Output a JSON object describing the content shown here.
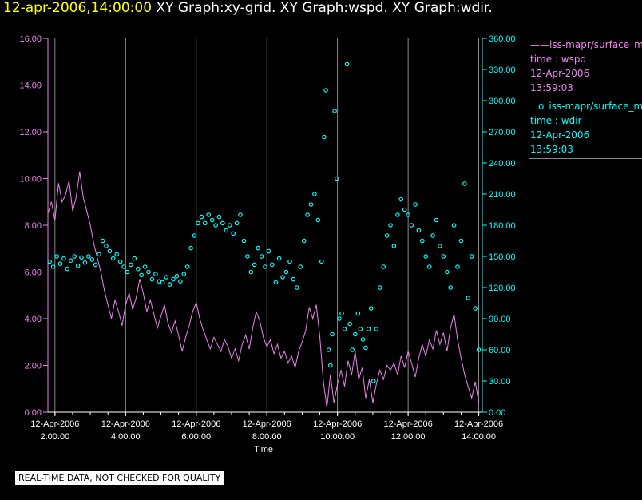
{
  "header": {
    "timestamp": "12-apr-2006,14:00:00",
    "graphs": "XY Graph:xy-grid.  XY Graph:wspd.  XY Graph:wdir."
  },
  "legend": {
    "wspd": {
      "marker": "——",
      "name": "iss-mapr/surface_m",
      "var": "time : wspd",
      "date": "12-Apr-2006",
      "time": "13:59:03"
    },
    "wdir": {
      "marker": "o",
      "name": "iss-mapr/surface_m",
      "var": "time : wdir",
      "date": "12-Apr-2006",
      "time": "13:59:03"
    }
  },
  "disclaimer": "REAL-TIME DATA, NOT CHECKED FOR QUALITY",
  "colors": {
    "wspd": "#ee82ee",
    "wdir": "#00ffff",
    "grid": "#aaaaaa",
    "axis": "#ffffff"
  },
  "chart_data": {
    "type": "line",
    "xlabel": "Time",
    "x_range_hours": [
      1.8,
      14.1
    ],
    "x_ticks": [
      {
        "hour": 2,
        "date": "12-Apr-2006",
        "time": "2:00:00"
      },
      {
        "hour": 4,
        "date": "12-Apr-2006",
        "time": "4:00:00"
      },
      {
        "hour": 6,
        "date": "12-Apr-2006",
        "time": "6:00:00"
      },
      {
        "hour": 8,
        "date": "12-Apr-2006",
        "time": "8:00:00"
      },
      {
        "hour": 10,
        "date": "12-Apr-2006",
        "time": "10:00:00"
      },
      {
        "hour": 12,
        "date": "12-Apr-2006",
        "time": "12:00:00"
      },
      {
        "hour": 14,
        "date": "12-Apr-2006",
        "time": "14:00:00"
      }
    ],
    "left_axis": {
      "ylim": [
        0,
        16
      ],
      "ticks": [
        "0.00",
        "2.00",
        "4.00",
        "6.00",
        "8.00",
        "10.00",
        "12.00",
        "14.00",
        "16.00"
      ]
    },
    "right_axis": {
      "ylim": [
        0,
        360
      ],
      "ticks": [
        "0.00",
        "30.00",
        "60.00",
        "90.00",
        "120.00",
        "150.00",
        "180.00",
        "210.00",
        "240.00",
        "270.00",
        "300.00",
        "330.00",
        "360.00"
      ]
    },
    "series": [
      {
        "name": "wspd",
        "axis": "left",
        "style": "line",
        "points": [
          [
            1.8,
            8.5
          ],
          [
            1.9,
            9.0
          ],
          [
            2.0,
            8.2
          ],
          [
            2.1,
            9.8
          ],
          [
            2.2,
            9.0
          ],
          [
            2.3,
            9.3
          ],
          [
            2.4,
            9.9
          ],
          [
            2.5,
            8.6
          ],
          [
            2.6,
            9.2
          ],
          [
            2.7,
            10.3
          ],
          [
            2.8,
            9.2
          ],
          [
            2.9,
            8.6
          ],
          [
            3.0,
            8.0
          ],
          [
            3.1,
            7.2
          ],
          [
            3.2,
            6.6
          ],
          [
            3.3,
            6.0
          ],
          [
            3.4,
            5.2
          ],
          [
            3.5,
            4.6
          ],
          [
            3.6,
            4.0
          ],
          [
            3.7,
            4.8
          ],
          [
            3.8,
            4.3
          ],
          [
            3.9,
            3.7
          ],
          [
            4.0,
            4.6
          ],
          [
            4.1,
            5.1
          ],
          [
            4.2,
            4.4
          ],
          [
            4.3,
            4.9
          ],
          [
            4.4,
            5.7
          ],
          [
            4.5,
            5.1
          ],
          [
            4.6,
            4.3
          ],
          [
            4.7,
            4.8
          ],
          [
            4.8,
            4.2
          ],
          [
            4.9,
            3.6
          ],
          [
            5.0,
            4.1
          ],
          [
            5.1,
            4.6
          ],
          [
            5.2,
            3.8
          ],
          [
            5.3,
            3.4
          ],
          [
            5.4,
            3.9
          ],
          [
            5.5,
            3.3
          ],
          [
            5.6,
            2.6
          ],
          [
            5.7,
            3.2
          ],
          [
            5.8,
            3.7
          ],
          [
            5.9,
            4.3
          ],
          [
            6.0,
            4.7
          ],
          [
            6.1,
            4.0
          ],
          [
            6.2,
            3.5
          ],
          [
            6.3,
            3.1
          ],
          [
            6.4,
            2.7
          ],
          [
            6.5,
            3.2
          ],
          [
            6.6,
            2.9
          ],
          [
            6.7,
            2.6
          ],
          [
            6.8,
            3.1
          ],
          [
            6.9,
            2.8
          ],
          [
            7.0,
            2.3
          ],
          [
            7.1,
            2.7
          ],
          [
            7.2,
            2.2
          ],
          [
            7.3,
            2.9
          ],
          [
            7.4,
            3.3
          ],
          [
            7.5,
            2.7
          ],
          [
            7.6,
            3.6
          ],
          [
            7.7,
            4.3
          ],
          [
            7.8,
            3.9
          ],
          [
            7.9,
            3.2
          ],
          [
            8.0,
            2.8
          ],
          [
            8.1,
            3.1
          ],
          [
            8.2,
            2.5
          ],
          [
            8.3,
            2.9
          ],
          [
            8.4,
            2.3
          ],
          [
            8.5,
            2.6
          ],
          [
            8.6,
            2.1
          ],
          [
            8.7,
            2.4
          ],
          [
            8.8,
            1.9
          ],
          [
            8.9,
            2.6
          ],
          [
            9.0,
            3.0
          ],
          [
            9.1,
            3.5
          ],
          [
            9.2,
            4.5
          ],
          [
            9.3,
            4.0
          ],
          [
            9.4,
            4.6
          ],
          [
            9.5,
            3.2
          ],
          [
            9.6,
            1.3
          ],
          [
            9.7,
            0.2
          ],
          [
            9.8,
            1.6
          ],
          [
            9.9,
            0.4
          ],
          [
            10.0,
            1.2
          ],
          [
            10.1,
            1.8
          ],
          [
            10.2,
            1.1
          ],
          [
            10.3,
            2.2
          ],
          [
            10.4,
            1.6
          ],
          [
            10.5,
            2.6
          ],
          [
            10.6,
            1.4
          ],
          [
            10.7,
            1.9
          ],
          [
            10.8,
            0.6
          ],
          [
            10.9,
            1.4
          ],
          [
            11.0,
            0.4
          ],
          [
            11.1,
            1.2
          ],
          [
            11.2,
            1.8
          ],
          [
            11.3,
            1.4
          ],
          [
            11.4,
            2.0
          ],
          [
            11.5,
            1.8
          ],
          [
            11.6,
            2.1
          ],
          [
            11.7,
            1.6
          ],
          [
            11.8,
            2.4
          ],
          [
            11.9,
            1.9
          ],
          [
            12.0,
            2.6
          ],
          [
            12.1,
            2.1
          ],
          [
            12.2,
            1.5
          ],
          [
            12.3,
            2.3
          ],
          [
            12.4,
            2.9
          ],
          [
            12.5,
            2.4
          ],
          [
            12.6,
            3.1
          ],
          [
            12.7,
            2.7
          ],
          [
            12.8,
            3.5
          ],
          [
            12.9,
            2.9
          ],
          [
            13.0,
            3.4
          ],
          [
            13.1,
            2.6
          ],
          [
            13.2,
            3.6
          ],
          [
            13.3,
            4.2
          ],
          [
            13.4,
            3.1
          ],
          [
            13.5,
            2.3
          ],
          [
            13.6,
            1.6
          ],
          [
            13.7,
            1.1
          ],
          [
            13.8,
            0.6
          ],
          [
            13.9,
            1.3
          ],
          [
            14.0,
            0.4
          ]
        ]
      },
      {
        "name": "wdir",
        "axis": "right",
        "style": "circles",
        "points": [
          [
            1.85,
            145
          ],
          [
            1.95,
            140
          ],
          [
            2.05,
            150
          ],
          [
            2.15,
            143
          ],
          [
            2.25,
            148
          ],
          [
            2.35,
            138
          ],
          [
            2.45,
            146
          ],
          [
            2.55,
            150
          ],
          [
            2.65,
            141
          ],
          [
            2.75,
            149
          ],
          [
            2.85,
            144
          ],
          [
            2.95,
            150
          ],
          [
            3.05,
            147
          ],
          [
            3.15,
            142
          ],
          [
            3.25,
            152
          ],
          [
            3.35,
            165
          ],
          [
            3.45,
            160
          ],
          [
            3.55,
            155
          ],
          [
            3.65,
            148
          ],
          [
            3.75,
            152
          ],
          [
            3.85,
            145
          ],
          [
            3.95,
            140
          ],
          [
            4.05,
            135
          ],
          [
            4.15,
            142
          ],
          [
            4.25,
            148
          ],
          [
            4.35,
            138
          ],
          [
            4.45,
            132
          ],
          [
            4.55,
            140
          ],
          [
            4.65,
            135
          ],
          [
            4.75,
            128
          ],
          [
            4.85,
            133
          ],
          [
            4.95,
            126
          ],
          [
            5.05,
            125
          ],
          [
            5.15,
            130
          ],
          [
            5.25,
            123
          ],
          [
            5.35,
            128
          ],
          [
            5.45,
            131
          ],
          [
            5.55,
            126
          ],
          [
            5.65,
            133
          ],
          [
            5.75,
            140
          ],
          [
            5.85,
            158
          ],
          [
            5.95,
            170
          ],
          [
            6.05,
            182
          ],
          [
            6.15,
            188
          ],
          [
            6.25,
            182
          ],
          [
            6.35,
            190
          ],
          [
            6.45,
            185
          ],
          [
            6.55,
            180
          ],
          [
            6.65,
            188
          ],
          [
            6.75,
            182
          ],
          [
            6.85,
            175
          ],
          [
            6.95,
            180
          ],
          [
            7.05,
            172
          ],
          [
            7.15,
            182
          ],
          [
            7.25,
            190
          ],
          [
            7.35,
            165
          ],
          [
            7.45,
            150
          ],
          [
            7.55,
            135
          ],
          [
            7.65,
            142
          ],
          [
            7.75,
            158
          ],
          [
            7.85,
            150
          ],
          [
            7.95,
            140
          ],
          [
            8.05,
            155
          ],
          [
            8.15,
            142
          ],
          [
            8.25,
            125
          ],
          [
            8.35,
            148
          ],
          [
            8.45,
            130
          ],
          [
            8.55,
            135
          ],
          [
            8.65,
            145
          ],
          [
            8.75,
            128
          ],
          [
            8.85,
            120
          ],
          [
            8.95,
            140
          ],
          [
            9.05,
            165
          ],
          [
            9.15,
            190
          ],
          [
            9.25,
            200
          ],
          [
            9.35,
            210
          ],
          [
            9.45,
            185
          ],
          [
            9.55,
            145
          ],
          [
            9.62,
            265
          ],
          [
            9.67,
            310
          ],
          [
            9.75,
            60
          ],
          [
            9.8,
            45
          ],
          [
            9.85,
            75
          ],
          [
            9.92,
            290
          ],
          [
            9.98,
            225
          ],
          [
            10.05,
            90
          ],
          [
            10.12,
            95
          ],
          [
            10.2,
            80
          ],
          [
            10.27,
            335
          ],
          [
            10.35,
            85
          ],
          [
            10.42,
            60
          ],
          [
            10.5,
            75
          ],
          [
            10.58,
            95
          ],
          [
            10.65,
            80
          ],
          [
            10.72,
            70
          ],
          [
            10.8,
            62
          ],
          [
            10.88,
            80
          ],
          [
            10.95,
            100
          ],
          [
            11.02,
            30
          ],
          [
            11.1,
            80
          ],
          [
            11.2,
            120
          ],
          [
            11.3,
            140
          ],
          [
            11.4,
            170
          ],
          [
            11.5,
            180
          ],
          [
            11.6,
            160
          ],
          [
            11.7,
            190
          ],
          [
            11.8,
            205
          ],
          [
            11.9,
            195
          ],
          [
            12.0,
            190
          ],
          [
            12.1,
            180
          ],
          [
            12.2,
            200
          ],
          [
            12.3,
            175
          ],
          [
            12.4,
            165
          ],
          [
            12.5,
            150
          ],
          [
            12.6,
            140
          ],
          [
            12.7,
            170
          ],
          [
            12.8,
            185
          ],
          [
            12.9,
            160
          ],
          [
            13.0,
            150
          ],
          [
            13.1,
            135
          ],
          [
            13.2,
            120
          ],
          [
            13.3,
            180
          ],
          [
            13.4,
            140
          ],
          [
            13.5,
            165
          ],
          [
            13.6,
            220
          ],
          [
            13.7,
            110
          ],
          [
            13.8,
            150
          ],
          [
            13.9,
            100
          ],
          [
            14.0,
            60
          ]
        ]
      }
    ]
  }
}
